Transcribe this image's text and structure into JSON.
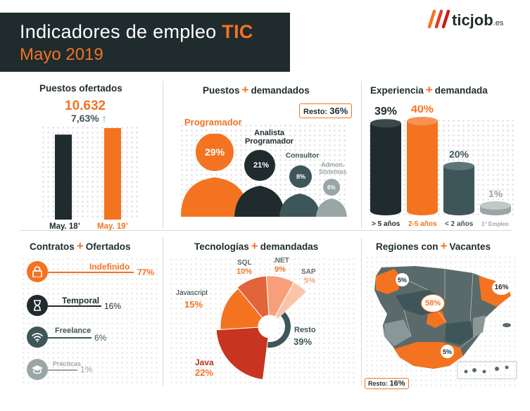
{
  "header": {
    "title_prefix": "Indicadores de empleo",
    "title_highlight": "TIC",
    "subtitle": "Mayo 2019"
  },
  "logo": {
    "text": "ticjob",
    "suffix": ".es",
    "icon": "ticjob-logo-icon"
  },
  "colors": {
    "orange": "#f47320",
    "dark": "#1f2b2d",
    "teal": "#3e5659",
    "gray": "#9aa5a6"
  },
  "puestos": {
    "title": "Puestos ofertados",
    "value": "10.632",
    "change": "7,63%",
    "arrow": "↑",
    "chart_data": {
      "type": "bar",
      "categories": [
        "May. 18’",
        "May. 19’"
      ],
      "values": [
        0.929,
        1
      ]
    }
  },
  "demandados": {
    "title_a": "Puestos",
    "title_b": "demandados",
    "resto_label": "Resto:",
    "resto_value": "36%",
    "items": [
      {
        "name": "Programador",
        "pct": "29%"
      },
      {
        "name_l1": "Analista",
        "name_l2": "Programador",
        "pct": "21%"
      },
      {
        "name": "Consultor",
        "pct": "8%"
      },
      {
        "name_l1": "Admon.",
        "name_l2": "Sistemas",
        "pct": "6%"
      }
    ]
  },
  "experiencia": {
    "title_a": "Experiencia",
    "title_b": "demandada",
    "chart_data": {
      "type": "bar",
      "categories": [
        "> 5 años",
        "2-5 años",
        "< 2 años",
        "1° Empleo"
      ],
      "values": [
        39,
        40,
        20,
        1
      ]
    },
    "pcts": [
      "39%",
      "40%",
      "20%",
      "1%"
    ]
  },
  "contratos": {
    "title_a": "Contratos",
    "title_b": "Ofertados",
    "items": [
      {
        "label": "Indefinido",
        "pct": "77%",
        "icon": "lock-icon"
      },
      {
        "label": "Temporal",
        "pct": "16%",
        "icon": "hourglass-icon"
      },
      {
        "label": "Freelance",
        "pct": "6%",
        "icon": "wifi-icon"
      },
      {
        "label": "Prácticas",
        "pct": "1%",
        "icon": "graduation-cap-icon"
      }
    ]
  },
  "tecnologias": {
    "title_a": "Tecnologías",
    "title_b": "demandadas",
    "chart_data": {
      "type": "pie",
      "categories": [
        "SQL",
        ".NET",
        "SAP",
        "Resto",
        "Java",
        "Javascript"
      ],
      "values": [
        10,
        9,
        5,
        39,
        22,
        15
      ]
    },
    "labels": [
      {
        "name": "SQL",
        "pct": "10%"
      },
      {
        "name": ".NET",
        "pct": "9%"
      },
      {
        "name": "SAP",
        "pct": "5%"
      },
      {
        "name": "Resto",
        "pct": "39%"
      },
      {
        "name": "Java",
        "pct": "22%"
      },
      {
        "name": "Javascript",
        "pct": "15%"
      }
    ]
  },
  "regiones": {
    "title_a": "Regiones con",
    "title_b": "Vacantes",
    "pcts": [
      "5%",
      "16%",
      "58%",
      "5%"
    ],
    "resto_label": "Resto:",
    "resto_value": "16%"
  }
}
